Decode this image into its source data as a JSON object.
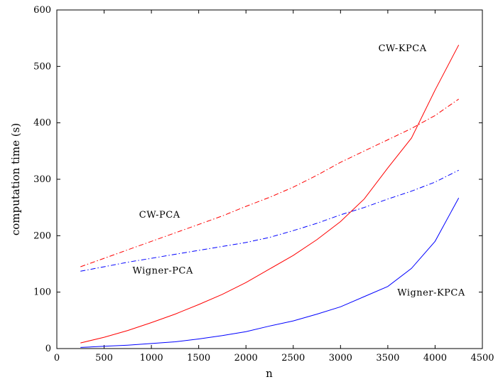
{
  "chart_data": {
    "type": "line",
    "xlabel": "n",
    "ylabel": "computation time (s)",
    "xlim": [
      0,
      4500
    ],
    "ylim": [
      0,
      600
    ],
    "xticks": [
      0,
      500,
      1000,
      1500,
      2000,
      2500,
      3000,
      3500,
      4000,
      4500
    ],
    "yticks": [
      0,
      100,
      200,
      300,
      400,
      500,
      600
    ],
    "grid": false,
    "series": [
      {
        "key": "cw_kpca",
        "color": "#ff0000",
        "style": "solid",
        "x": [
          250,
          500,
          750,
          1000,
          1250,
          1500,
          1750,
          2000,
          2250,
          2500,
          2750,
          3000,
          3250,
          3500,
          3750,
          4000,
          4250
        ],
        "y": [
          10,
          20,
          32,
          46,
          61,
          78,
          96,
          117,
          141,
          165,
          193,
          225,
          265,
          320,
          373,
          458,
          538
        ]
      },
      {
        "key": "cw_pca",
        "color": "#ff0000",
        "style": "dashdot",
        "x": [
          250,
          500,
          750,
          1000,
          1250,
          1500,
          1750,
          2000,
          2250,
          2500,
          2750,
          3000,
          3250,
          3500,
          3750,
          4000,
          4250
        ],
        "y": [
          145,
          160,
          175,
          190,
          205,
          220,
          235,
          252,
          268,
          286,
          307,
          330,
          350,
          370,
          390,
          413,
          442
        ]
      },
      {
        "key": "wigner_pca",
        "color": "#0000ff",
        "style": "dashdot",
        "x": [
          250,
          500,
          750,
          1000,
          1250,
          1500,
          1750,
          2000,
          2250,
          2500,
          2750,
          3000,
          3250,
          3500,
          3750,
          4000,
          4250
        ],
        "y": [
          137,
          145,
          153,
          160,
          167,
          174,
          181,
          188,
          197,
          209,
          222,
          237,
          250,
          265,
          279,
          295,
          316
        ]
      },
      {
        "key": "wigner_kpca",
        "color": "#0000ff",
        "style": "solid",
        "x": [
          250,
          500,
          750,
          1000,
          1250,
          1500,
          1750,
          2000,
          2250,
          2500,
          2750,
          3000,
          3250,
          3500,
          3750,
          4000,
          4250
        ],
        "y": [
          2,
          4,
          6,
          9,
          12,
          17,
          23,
          30,
          40,
          49,
          61,
          74,
          92,
          110,
          142,
          190,
          267
        ]
      }
    ],
    "annotations": [
      {
        "text": "CW-KPCA",
        "x": 3400,
        "y": 527
      },
      {
        "text": "CW-PCA",
        "x": 870,
        "y": 232
      },
      {
        "text": "Wigner-PCA",
        "x": 800,
        "y": 133
      },
      {
        "text": "Wigner-KPCA",
        "x": 3600,
        "y": 94
      }
    ]
  }
}
